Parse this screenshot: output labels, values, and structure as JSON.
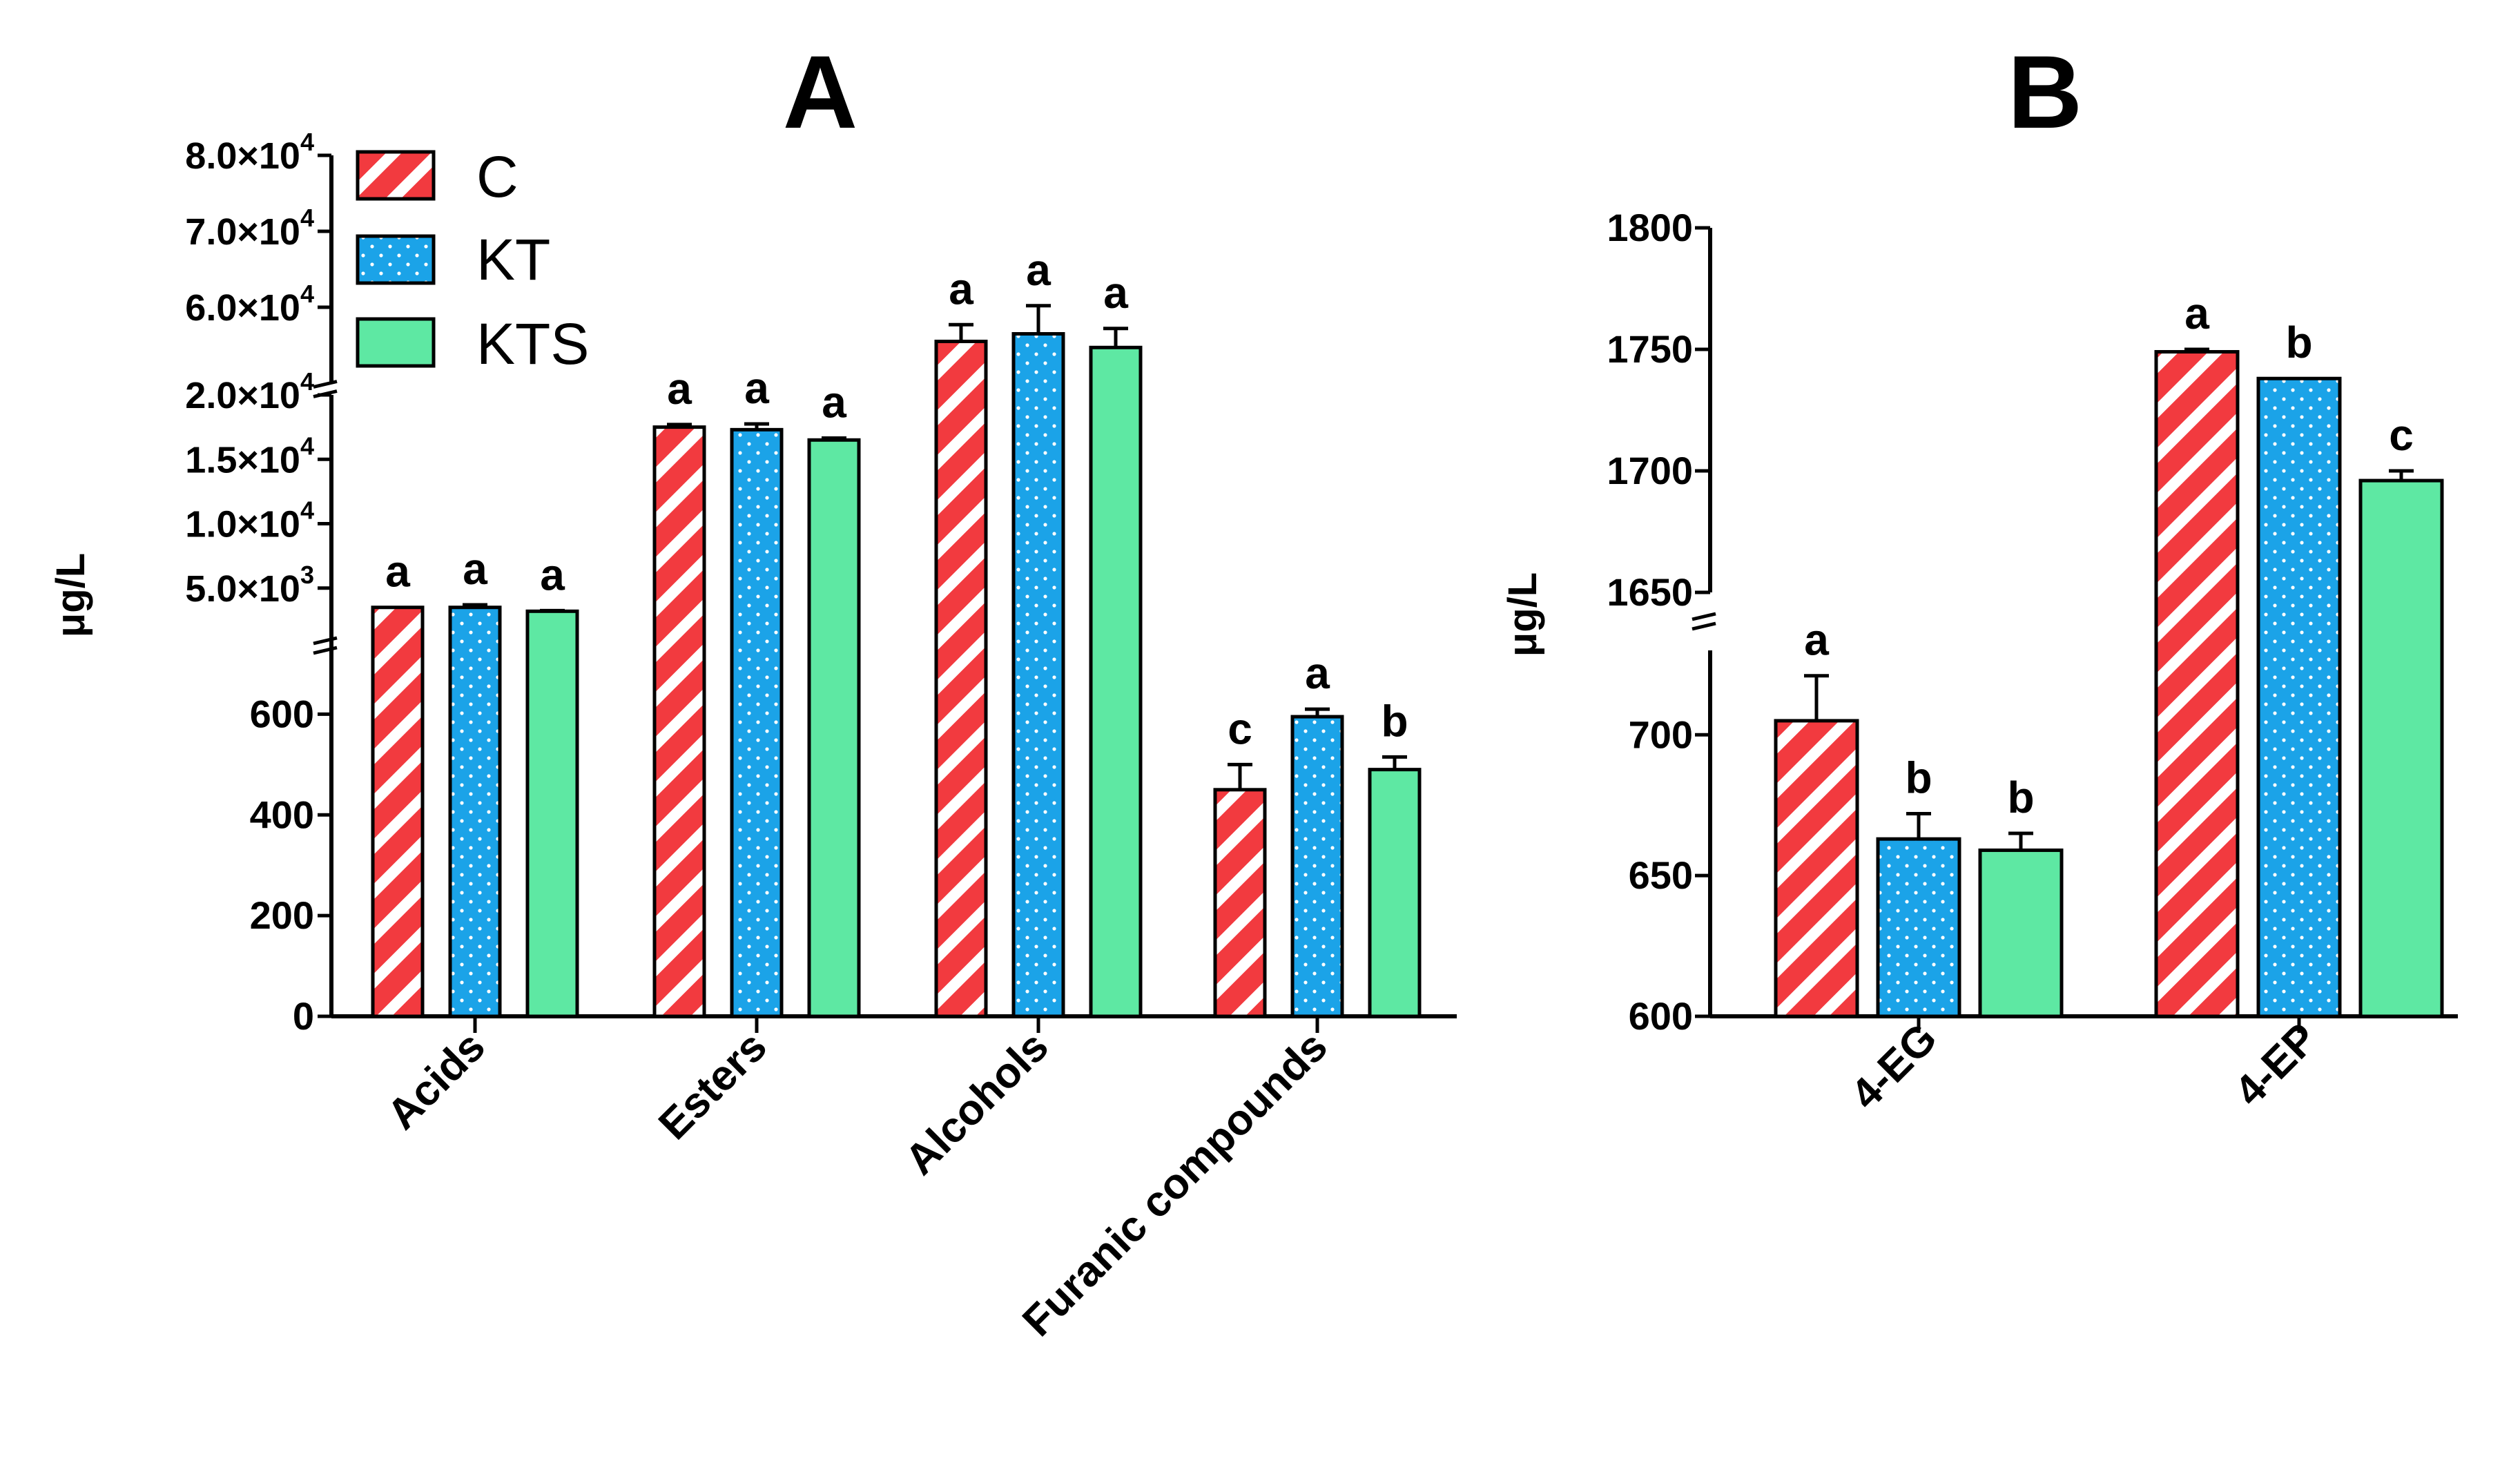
{
  "colors": {
    "C": "#f23a3f",
    "KT": "#1ba3e8",
    "KTS": "#5ee8a3",
    "axis": "#000000"
  },
  "legend": {
    "items": [
      {
        "key": "C",
        "label": "C",
        "pattern": "diagonal-stripes"
      },
      {
        "key": "KT",
        "label": "KT",
        "pattern": "dots"
      },
      {
        "key": "KTS",
        "label": "KTS",
        "pattern": "solid"
      }
    ]
  },
  "chart_data": [
    {
      "panel": "A",
      "type": "bar",
      "ylabel": "μg/L",
      "broken_axis": true,
      "segments": [
        {
          "range": [
            0,
            750
          ],
          "ticks": [
            {
              "value": 0,
              "label": "0"
            },
            {
              "value": 200,
              "label": "200"
            },
            {
              "value": 400,
              "label": "400"
            },
            {
              "value": 600,
              "label": "600"
            }
          ]
        },
        {
          "range": [
            0,
            20000
          ],
          "ticks": [
            {
              "value": 5000,
              "mant": "5.0×10",
              "exp": "3"
            },
            {
              "value": 10000,
              "mant": "1.0×10",
              "exp": "4"
            },
            {
              "value": 15000,
              "mant": "1.5×10",
              "exp": "4"
            },
            {
              "value": 20000,
              "mant": "2.0×10",
              "exp": "4"
            }
          ]
        },
        {
          "range": [
            50000,
            80000
          ],
          "ticks": [
            {
              "value": 60000,
              "mant": "6.0×10",
              "exp": "4"
            },
            {
              "value": 70000,
              "mant": "7.0×10",
              "exp": "4"
            },
            {
              "value": 80000,
              "mant": "8.0×10",
              "exp": "4"
            }
          ]
        }
      ],
      "categories": [
        "Acids",
        "Esters",
        "Alcohols",
        "Furanic compounds"
      ],
      "series": [
        {
          "name": "C",
          "values": [
            3500,
            17500,
            55500,
            450
          ],
          "errors": [
            0,
            200,
            2200,
            50
          ],
          "sig": [
            "a",
            "a",
            "a",
            "c"
          ]
        },
        {
          "name": "KT",
          "values": [
            3500,
            17300,
            56500,
            595
          ],
          "errors": [
            200,
            450,
            3700,
            15
          ],
          "sig": [
            "a",
            "a",
            "a",
            "a"
          ]
        },
        {
          "name": "KTS",
          "values": [
            3200,
            16500,
            54700,
            490
          ],
          "errors": [
            50,
            150,
            2500,
            25
          ],
          "sig": [
            "a",
            "a",
            "a",
            "b"
          ]
        }
      ]
    },
    {
      "panel": "B",
      "type": "bar",
      "ylabel": "μg/L",
      "broken_axis": true,
      "segments": [
        {
          "range": [
            600,
            730
          ],
          "ticks": [
            {
              "value": 600,
              "label": "600"
            },
            {
              "value": 650,
              "label": "650"
            },
            {
              "value": 700,
              "label": "700"
            }
          ]
        },
        {
          "range": [
            1650,
            1800
          ],
          "ticks": [
            {
              "value": 1650,
              "label": "1650"
            },
            {
              "value": 1700,
              "label": "1700"
            },
            {
              "value": 1750,
              "label": "1750"
            },
            {
              "value": 1800,
              "label": "1800"
            }
          ]
        }
      ],
      "categories": [
        "4-EG",
        "4-EP"
      ],
      "series": [
        {
          "name": "C",
          "values": [
            705,
            1749
          ],
          "errors": [
            16,
            1
          ],
          "sig": [
            "a",
            "a"
          ]
        },
        {
          "name": "KT",
          "values": [
            663,
            1738
          ],
          "errors": [
            9,
            0
          ],
          "sig": [
            "b",
            "b"
          ]
        },
        {
          "name": "KTS",
          "values": [
            659,
            1696
          ],
          "errors": [
            6,
            4
          ],
          "sig": [
            "b",
            "c"
          ]
        }
      ]
    }
  ]
}
